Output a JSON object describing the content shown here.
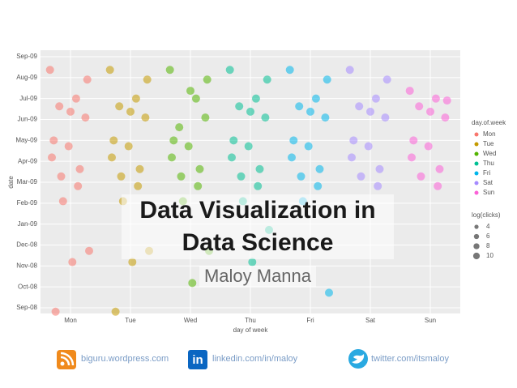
{
  "chart_data": {
    "type": "scatter",
    "title": "Data Visualization in Data Science",
    "subtitle": "Maloy Manna",
    "x_label": "day of week",
    "y_label": "date",
    "categories": [
      "Mon",
      "Tue",
      "Wed",
      "Thu",
      "Fri",
      "Sat",
      "Sun"
    ],
    "ylim": [
      "2008-09",
      "2009-09"
    ],
    "yticks": [
      {
        "value": "2008-09",
        "label": "Sep-08"
      },
      {
        "value": "2008-10",
        "label": "Oct-08"
      },
      {
        "value": "2008-11",
        "label": "Nov-08"
      },
      {
        "value": "2008-12",
        "label": "Dec-08"
      },
      {
        "value": "2009-01",
        "label": "Jan-09"
      },
      {
        "value": "2009-02",
        "label": "Feb-09"
      },
      {
        "value": "2009-03",
        "label": "Mar-09"
      },
      {
        "value": "2009-04",
        "label": "Apr-09"
      },
      {
        "value": "2009-05",
        "label": "May-09"
      },
      {
        "value": "2009-06",
        "label": "Jun-09"
      },
      {
        "value": "2009-07",
        "label": "Jul-09"
      },
      {
        "value": "2009-08",
        "label": "Aug-09"
      },
      {
        "value": "2009-09",
        "label": "Sep-09"
      }
    ],
    "grid": true,
    "legend_title": "day.of.week",
    "size_legend_title": "log(clicks)",
    "size_legend": [
      4,
      6,
      8,
      10
    ],
    "series": [
      {
        "name": "Mon",
        "color": "#f8766d",
        "values": [
          "2009-08",
          "2009-07",
          "2009-07",
          "2009-06",
          "2009-05",
          "2009-04",
          "2009-03",
          "2009-03",
          "2009-08",
          "2009-06",
          "2009-05",
          "2009-04",
          "2009-02",
          "2008-12",
          "2008-11",
          "2008-09"
        ]
      },
      {
        "name": "Tue",
        "color": "#c49a00",
        "values": [
          "2009-08",
          "2009-07",
          "2009-07",
          "2009-06",
          "2009-05",
          "2009-04",
          "2009-03",
          "2009-03",
          "2009-08",
          "2009-06",
          "2009-05",
          "2009-04",
          "2009-02",
          "2008-12",
          "2008-11",
          "2008-09"
        ]
      },
      {
        "name": "Wed",
        "color": "#53b400",
        "values": [
          "2009-08",
          "2009-07",
          "2009-06",
          "2009-06",
          "2009-05",
          "2009-04",
          "2009-03",
          "2009-03",
          "2009-08",
          "2009-07",
          "2009-05",
          "2009-04",
          "2009-02",
          "2008-12",
          "2008-10"
        ]
      },
      {
        "name": "Thu",
        "color": "#00c094",
        "values": [
          "2009-08",
          "2009-07",
          "2009-07",
          "2009-06",
          "2009-05",
          "2009-04",
          "2009-03",
          "2009-03",
          "2009-08",
          "2009-06",
          "2009-05",
          "2009-04",
          "2009-02",
          "2009-01",
          "2008-11"
        ]
      },
      {
        "name": "Fri",
        "color": "#00b6eb",
        "values": [
          "2009-08",
          "2009-07",
          "2009-07",
          "2009-06",
          "2009-05",
          "2009-04",
          "2009-03",
          "2009-03",
          "2009-08",
          "2009-06",
          "2009-05",
          "2009-04",
          "2009-02",
          "2008-10"
        ]
      },
      {
        "name": "Sat",
        "color": "#a58aff",
        "values": [
          "2009-08",
          "2009-07",
          "2009-07",
          "2009-06",
          "2009-05",
          "2009-04",
          "2009-03",
          "2009-03",
          "2009-08",
          "2009-06",
          "2009-05",
          "2009-04"
        ]
      },
      {
        "name": "Sun",
        "color": "#fb61d7",
        "values": [
          "2009-07",
          "2009-07",
          "2009-07",
          "2009-06",
          "2009-05",
          "2009-04",
          "2009-03",
          "2009-03",
          "2009-07",
          "2009-06",
          "2009-05",
          "2009-04"
        ]
      }
    ]
  },
  "footer": {
    "links": [
      "biguru.wordpress.com",
      "linkedin.com/in/maloy",
      "twitter.com/itsmaloy"
    ]
  }
}
